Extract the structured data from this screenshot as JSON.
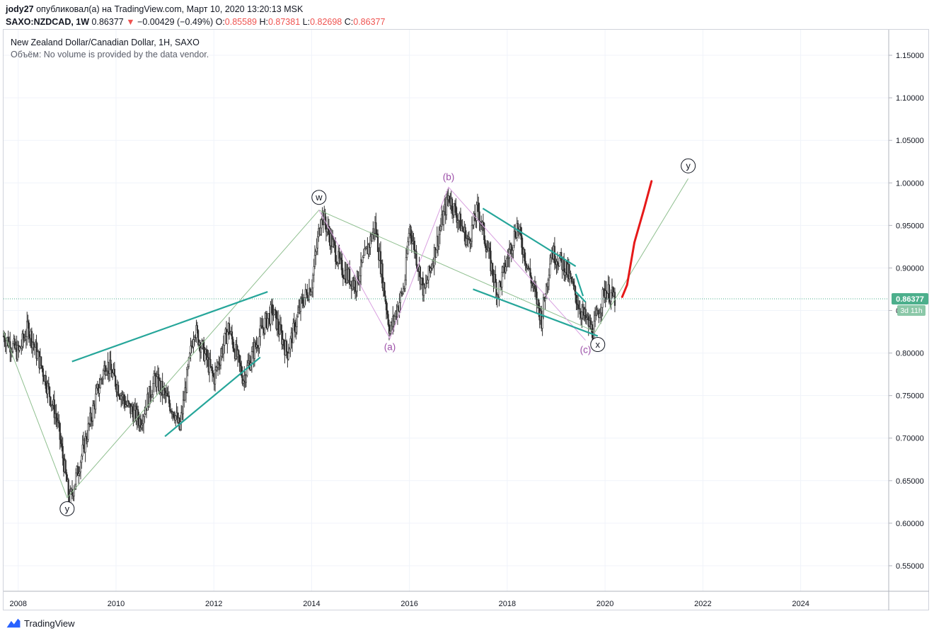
{
  "header": {
    "author": "jody27",
    "published": "опубликовал(а) на TradingView.com, Март 10, 2020 13:20:13 MSK",
    "symbol": "SAXO:NZDCAD, 1W",
    "last": "0.86377",
    "change_arrow": "▼",
    "change": "−0.00429 (−0.49%)",
    "o_label": "O:",
    "o_value": "0.85589",
    "h_label": "H:",
    "h_value": "0.87381",
    "l_label": "L:",
    "l_value": "0.82698",
    "c_label": "C:",
    "c_value": "0.86377"
  },
  "legend": {
    "title": "New Zealand Dollar/Canadian Dollar, 1H, SAXO",
    "volume_note": "Объём: No volume is provided by the data vendor."
  },
  "price_tag": {
    "value": "0.86377",
    "countdown": "3d 11h"
  },
  "footer": {
    "brand": "TradingView"
  },
  "colors": {
    "accent": "#4aa58f",
    "teal": "#26a69a",
    "purple": "#9c4fa8",
    "red": "#e61919",
    "candle": "#2f2f2f",
    "wave_line": "#8fbf8f",
    "price_tag": "#4caf8c"
  },
  "chart_data": {
    "type": "candlestick",
    "title": "New Zealand Dollar/Canadian Dollar, 1H, SAXO",
    "ylim": [
      0.52,
      1.18
    ],
    "xlim": [
      2007.7,
      2025.8
    ],
    "y_ticks": [
      "0.55000",
      "0.60000",
      "0.65000",
      "0.70000",
      "0.75000",
      "0.80000",
      "0.85000",
      "0.90000",
      "0.95000",
      "1.00000",
      "1.05000",
      "1.10000",
      "1.15000"
    ],
    "x_ticks": [
      "2008",
      "2010",
      "2012",
      "2014",
      "2016",
      "2018",
      "2020",
      "2022",
      "2024"
    ],
    "last_price": 0.86377,
    "price_path": [
      [
        2007.7,
        0.82
      ],
      [
        2008.0,
        0.8
      ],
      [
        2008.2,
        0.83
      ],
      [
        2008.5,
        0.78
      ],
      [
        2008.8,
        0.72
      ],
      [
        2009.05,
        0.625
      ],
      [
        2009.3,
        0.68
      ],
      [
        2009.6,
        0.75
      ],
      [
        2009.8,
        0.79
      ],
      [
        2010.2,
        0.74
      ],
      [
        2010.5,
        0.72
      ],
      [
        2010.8,
        0.77
      ],
      [
        2011.2,
        0.73
      ],
      [
        2011.3,
        0.71
      ],
      [
        2011.6,
        0.83
      ],
      [
        2012.0,
        0.77
      ],
      [
        2012.3,
        0.83
      ],
      [
        2012.6,
        0.77
      ],
      [
        2013.0,
        0.83
      ],
      [
        2013.2,
        0.85
      ],
      [
        2013.5,
        0.8
      ],
      [
        2013.8,
        0.86
      ],
      [
        2014.0,
        0.88
      ],
      [
        2014.2,
        0.965
      ],
      [
        2014.6,
        0.9
      ],
      [
        2014.9,
        0.88
      ],
      [
        2015.3,
        0.95
      ],
      [
        2015.6,
        0.825
      ],
      [
        2015.9,
        0.88
      ],
      [
        2016.0,
        0.95
      ],
      [
        2016.3,
        0.87
      ],
      [
        2016.8,
        0.985
      ],
      [
        2017.2,
        0.93
      ],
      [
        2017.4,
        0.97
      ],
      [
        2017.8,
        0.87
      ],
      [
        2018.2,
        0.95
      ],
      [
        2018.7,
        0.84
      ],
      [
        2018.9,
        0.92
      ],
      [
        2019.2,
        0.9
      ],
      [
        2019.5,
        0.85
      ],
      [
        2019.75,
        0.825
      ],
      [
        2020.0,
        0.875
      ],
      [
        2020.2,
        0.86377
      ]
    ],
    "annotations": [
      {
        "label": "y",
        "x": 2009.0,
        "y": 0.617,
        "style": "circle"
      },
      {
        "label": "w",
        "x": 2014.15,
        "y": 0.983,
        "style": "circle"
      },
      {
        "label": "(a)",
        "x": 2015.6,
        "y": 0.807,
        "style": "purple"
      },
      {
        "label": "(b)",
        "x": 2016.8,
        "y": 1.007,
        "style": "purple"
      },
      {
        "label": "(c)",
        "x": 2019.6,
        "y": 0.804,
        "style": "purple"
      },
      {
        "label": "x",
        "x": 2019.85,
        "y": 0.81,
        "style": "circle"
      },
      {
        "label": "y",
        "x": 2021.7,
        "y": 1.02,
        "style": "circle"
      }
    ],
    "wave_lines": [
      [
        [
          2007.7,
          0.825
        ],
        [
          2009.0,
          0.63
        ],
        [
          2014.15,
          0.968
        ],
        [
          2019.8,
          0.825
        ],
        [
          2021.7,
          1.005
        ]
      ]
    ],
    "abc_lines": [
      [
        [
          2014.15,
          0.968
        ],
        [
          2015.6,
          0.817
        ],
        [
          2016.8,
          0.995
        ],
        [
          2019.6,
          0.815
        ]
      ]
    ],
    "trend_lines": [
      [
        [
          2009.1,
          0.79
        ],
        [
          2013.1,
          0.872
        ]
      ],
      [
        [
          2011.0,
          0.702
        ],
        [
          2012.95,
          0.795
        ]
      ],
      [
        [
          2017.5,
          0.97
        ],
        [
          2019.4,
          0.902
        ]
      ],
      [
        [
          2017.3,
          0.875
        ],
        [
          2019.85,
          0.82
        ]
      ],
      [
        [
          2019.4,
          0.893
        ],
        [
          2019.55,
          0.867
        ]
      ],
      [
        [
          2019.4,
          0.872
        ],
        [
          2019.6,
          0.86
        ]
      ]
    ],
    "forecast_curve": [
      [
        2020.35,
        0.866
      ],
      [
        2020.45,
        0.88
      ],
      [
        2020.6,
        0.93
      ],
      [
        2020.8,
        0.97
      ],
      [
        2020.95,
        1.002
      ]
    ]
  }
}
